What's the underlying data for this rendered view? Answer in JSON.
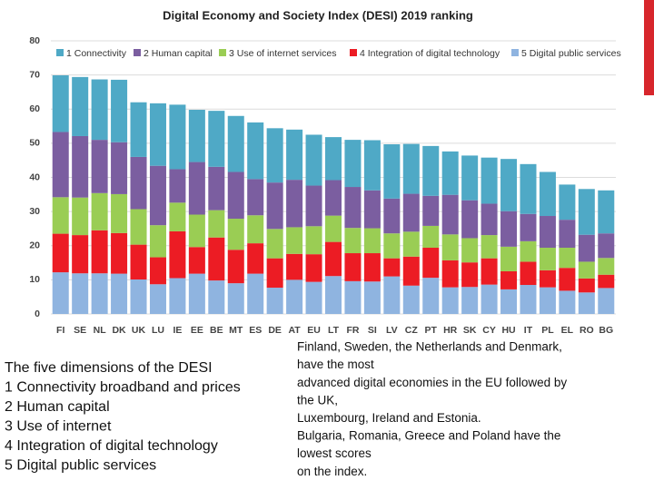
{
  "chart_data": {
    "type": "stacked-bar",
    "title": "Digital Economy and Society Index (DESI) 2019 ranking",
    "categories": [
      "FI",
      "SE",
      "NL",
      "DK",
      "UK",
      "LU",
      "IE",
      "EE",
      "BE",
      "MT",
      "ES",
      "DE",
      "AT",
      "EU",
      "LT",
      "FR",
      "SI",
      "LV",
      "CZ",
      "PT",
      "HR",
      "SK",
      "CY",
      "HU",
      "IT",
      "PL",
      "EL",
      "RO",
      "BG"
    ],
    "series": [
      {
        "name": "1 Connectivity",
        "color": "#4fa9c6",
        "values": [
          16.6,
          17.3,
          17.7,
          18.3,
          16.0,
          18.3,
          18.9,
          15.3,
          16.4,
          16.4,
          16.6,
          15.9,
          14.7,
          14.9,
          12.6,
          13.8,
          14.7,
          15.9,
          14.6,
          14.6,
          12.7,
          13.1,
          13.5,
          15.3,
          14.6,
          12.9,
          10.3,
          13.4,
          12.6
        ]
      },
      {
        "name": "2 Human capital",
        "color": "#7b5ea0",
        "values": [
          19.1,
          18.0,
          15.6,
          15.2,
          15.3,
          17.4,
          9.8,
          15.4,
          12.7,
          13.7,
          10.6,
          13.6,
          13.9,
          11.9,
          10.4,
          12.0,
          11.1,
          10.2,
          11.1,
          8.8,
          11.6,
          11.1,
          9.2,
          10.4,
          8.0,
          9.3,
          8.2,
          7.9,
          7.2
        ]
      },
      {
        "name": "3 Use of internet services",
        "color": "#9acd54",
        "values": [
          10.7,
          11.0,
          10.9,
          11.4,
          10.4,
          9.4,
          8.4,
          9.5,
          8.0,
          9.1,
          8.2,
          8.6,
          7.8,
          8.2,
          7.7,
          7.4,
          7.3,
          7.3,
          7.3,
          6.4,
          7.6,
          7.1,
          6.8,
          7.2,
          6.0,
          6.6,
          5.9,
          4.9,
          4.9
        ]
      },
      {
        "name": "4 Integration of digital technology",
        "color": "#ec1c24",
        "values": [
          11.3,
          11.2,
          12.6,
          11.9,
          10.2,
          7.9,
          13.7,
          7.8,
          12.6,
          9.8,
          8.9,
          8.6,
          7.6,
          8.1,
          10.0,
          8.2,
          8.3,
          5.3,
          8.5,
          8.8,
          7.9,
          7.2,
          7.7,
          5.3,
          6.8,
          5.0,
          6.7,
          4.1,
          3.9
        ]
      },
      {
        "name": "5 Digital public services",
        "color": "#8fb4e0",
        "values": [
          12.2,
          11.9,
          11.9,
          11.8,
          10.1,
          8.7,
          10.5,
          11.8,
          9.8,
          9.0,
          11.8,
          7.7,
          10.0,
          9.4,
          11.1,
          9.6,
          9.5,
          11.0,
          8.3,
          10.6,
          7.8,
          7.9,
          8.6,
          7.2,
          8.5,
          7.8,
          6.8,
          6.3,
          7.6
        ]
      }
    ],
    "ylim": [
      0,
      80
    ],
    "yticks": [
      0,
      10,
      20,
      30,
      40,
      50,
      60,
      70,
      80
    ],
    "grid": true
  },
  "left_text": [
    "The five dimensions of the DESI",
    "1 Connectivity broadband and prices",
    "2 Human capital",
    "3 Use of internet",
    "4 Integration of digital technology",
    "5 Digital public services"
  ],
  "right_text": [
    "Finland, Sweden, the Netherlands and Denmark,",
    "have the most",
    "advanced digital economies in the EU followed by",
    "the UK,",
    "Luxembourg, Ireland and Estonia.",
    "Bulgaria, Romania, Greece and Poland have the",
    "lowest scores",
    "on the index."
  ]
}
